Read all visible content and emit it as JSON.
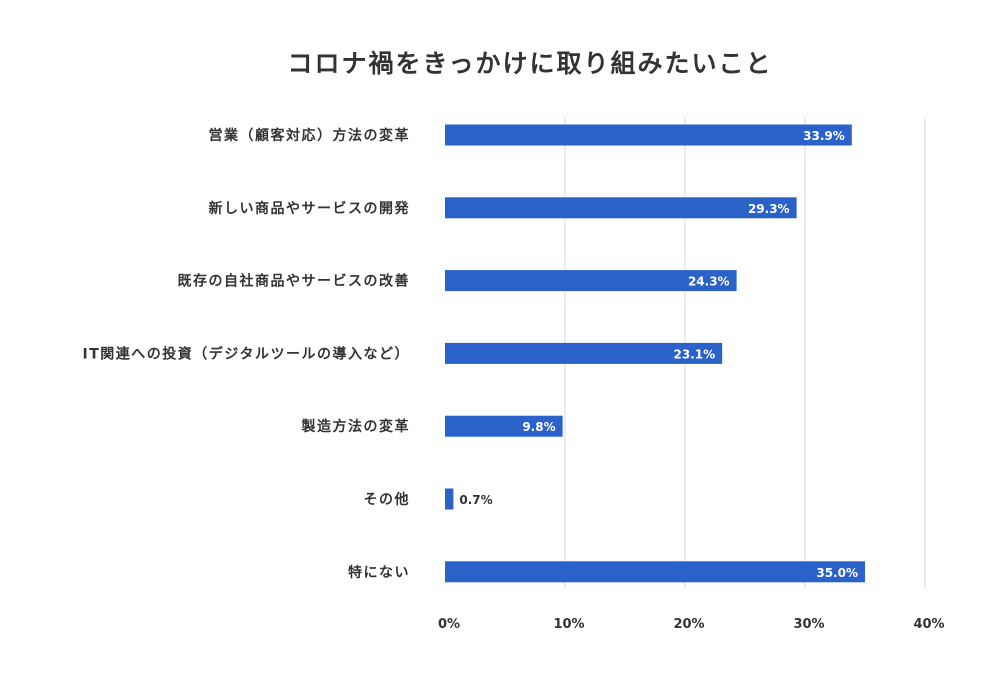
{
  "chart_data": {
    "type": "bar",
    "orientation": "horizontal",
    "title": "コロナ禍をきっかけに取り組みたいこと",
    "categories": [
      "営業（顧客対応）方法の変革",
      "新しい商品やサービスの開発",
      "既存の自社商品やサービスの改善",
      "IT関連への投資（デジタルツールの導入など）",
      "製造方法の変革",
      "その他",
      "特にない"
    ],
    "values": [
      33.9,
      29.3,
      24.3,
      23.1,
      9.8,
      0.7,
      35.0
    ],
    "value_labels": [
      "33.9%",
      "29.3%",
      "24.3%",
      "23.1%",
      "9.8%",
      "0.7%",
      "35.0%"
    ],
    "xlim": [
      0,
      40
    ],
    "xticks": [
      0,
      10,
      20,
      30,
      40
    ],
    "xtick_labels": [
      "0%",
      "10%",
      "20%",
      "30%",
      "40%"
    ],
    "xlabel": "",
    "ylabel": "",
    "grid": true,
    "legend": "none",
    "bar_color": "#2a62c9"
  }
}
